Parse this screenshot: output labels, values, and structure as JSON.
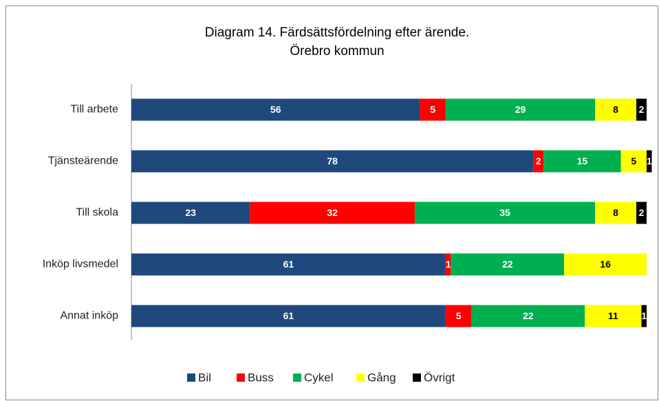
{
  "chart_data": {
    "type": "stacked_barh",
    "title": [
      "Diagram 14. Färdsättsfördelning efter ärende.",
      "Örebro kommun"
    ],
    "categories": [
      "Till arbete",
      "Tjänsteärende",
      "Till skola",
      "Inköp livsmedel",
      "Annat inköp"
    ],
    "series": [
      {
        "name": "Bil",
        "color": "#1f497d",
        "values": [
          56,
          78,
          23,
          61,
          61
        ]
      },
      {
        "name": "Buss",
        "color": "#ff0000",
        "values": [
          5,
          2,
          32,
          1,
          5
        ]
      },
      {
        "name": "Cykel",
        "color": "#00b050",
        "values": [
          29,
          15,
          35,
          22,
          22
        ]
      },
      {
        "name": "Gång",
        "color": "#ffff00",
        "values": [
          8,
          5,
          8,
          16,
          11
        ]
      },
      {
        "name": "Övrigt",
        "color": "#000000",
        "values": [
          2,
          1,
          2,
          null,
          1
        ]
      }
    ],
    "xlim": [
      0,
      100
    ],
    "legend": "bottom"
  }
}
